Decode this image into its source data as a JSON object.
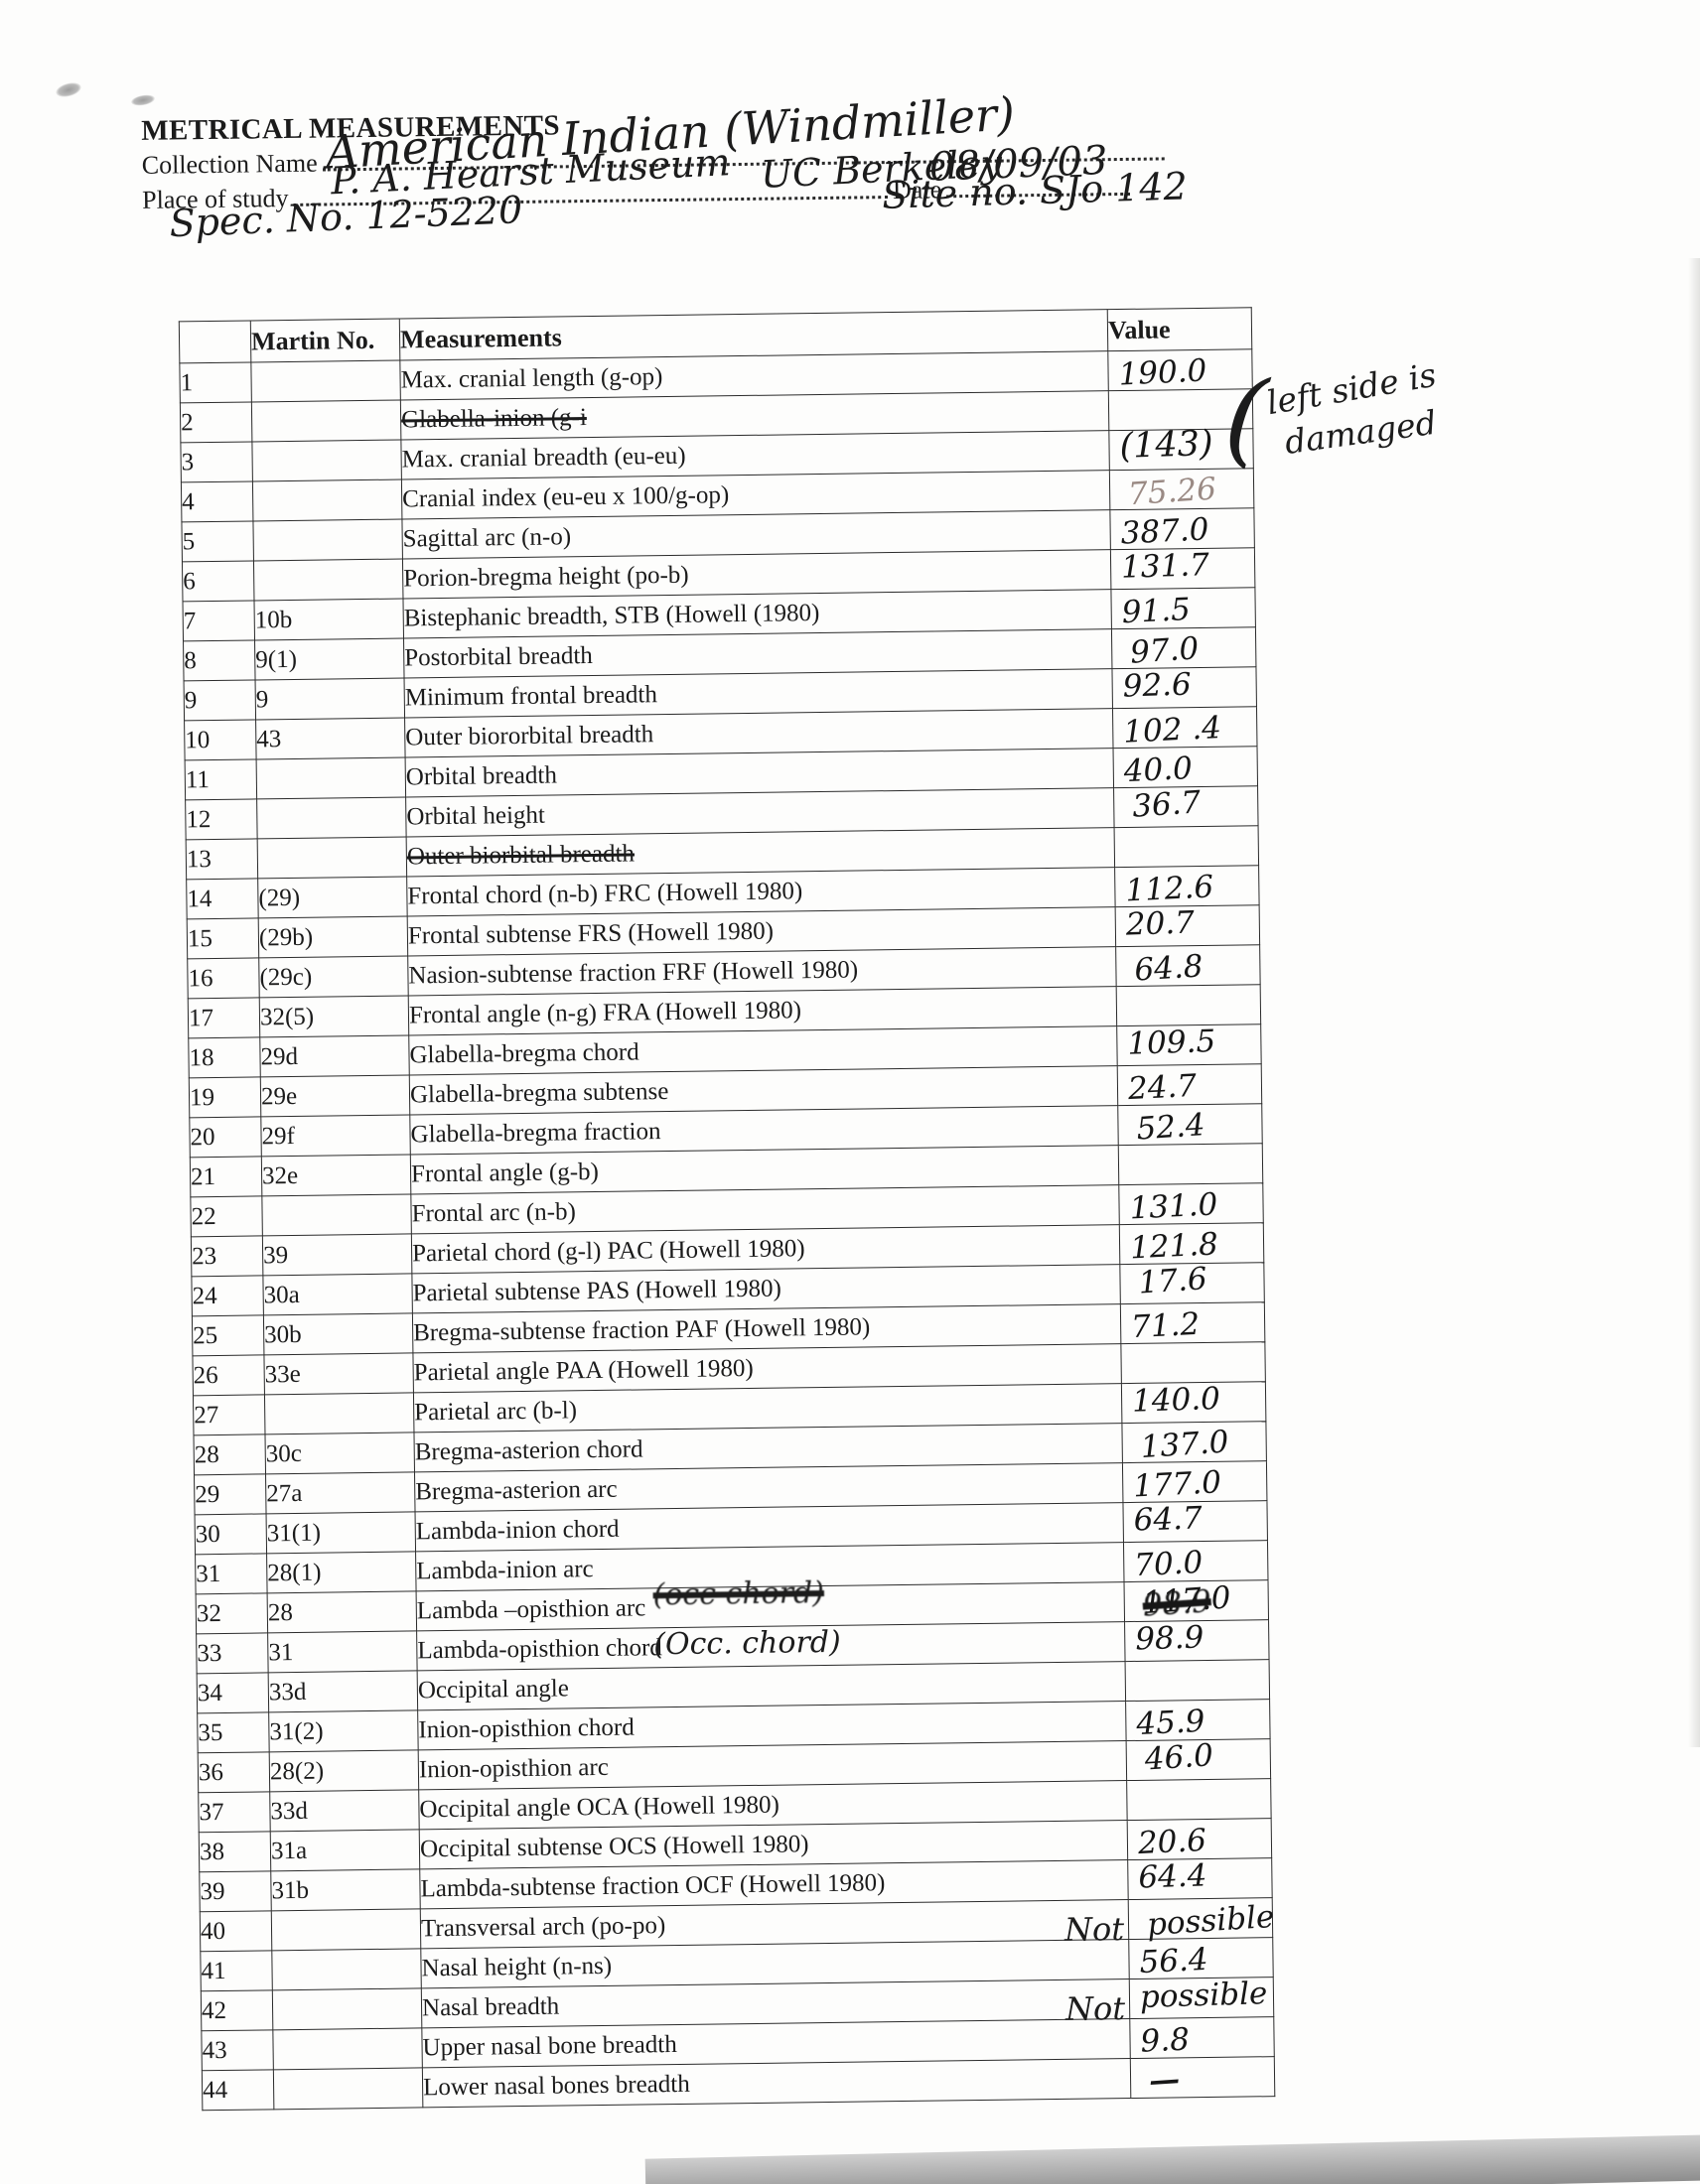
{
  "page": {
    "title": "METRICAL MEASUREMENTS",
    "fields": {
      "collection_label": "Collection  Name",
      "collection_value": "American Indian (Windmiller)",
      "place_label": "Place of study",
      "place_value1": "P. A. Hearst Museum",
      "place_value2": "UC Berkeley",
      "date_label": "Date",
      "date_value": "08/09/03",
      "spec_no": "Spec. No. 12-5220",
      "site_no": "Site no. SJo 142"
    }
  },
  "annotations": {
    "brace": "(",
    "damage_note_line1": "left side is",
    "damage_note_line2": "damaged",
    "not_label": "Not"
  },
  "table": {
    "headers": {
      "num": "",
      "martin": "Martin No.",
      "measurement": "Measurements",
      "value": "Value"
    },
    "rows": [
      {
        "n": "1",
        "m": "",
        "t": "Max. cranial length (g-op)",
        "v": "190.0"
      },
      {
        "n": "2",
        "m": "",
        "t": "Glabella-inion (g-i",
        "s": true,
        "v": ""
      },
      {
        "n": "3",
        "m": "",
        "t": "Max. cranial breadth (eu-eu)",
        "v": "(143)",
        "big": true
      },
      {
        "n": "4",
        "m": "",
        "t": "Cranial index (eu-eu x 100/g-op)",
        "v": "75.26",
        "p": true
      },
      {
        "n": "5",
        "m": "",
        "t": "Sagittal arc (n-o)",
        "v": "387.0"
      },
      {
        "n": "6",
        "m": "",
        "t": "Porion-bregma height  (po-b)",
        "v": "131.7"
      },
      {
        "n": "7",
        "m": "10b",
        "t": "Bistephanic breadth, STB (Howell (1980)",
        "v": "91.5"
      },
      {
        "n": "8",
        "m": "9(1)",
        "t": "Postorbital breadth",
        "v": "97.0"
      },
      {
        "n": "9",
        "m": "9",
        "t": "Minimum frontal breadth",
        "v": "92.6"
      },
      {
        "n": "10",
        "m": "43",
        "t": "Outer biororbital breadth",
        "v": "102 .4"
      },
      {
        "n": "11",
        "m": "",
        "t": "Orbital breadth",
        "v": "40.0"
      },
      {
        "n": "12",
        "m": "",
        "t": "Orbital height",
        "v": "36.7"
      },
      {
        "n": "13",
        "m": "",
        "t": "Outer biorbital breadth",
        "s": true,
        "v": ""
      },
      {
        "n": "14",
        "m": "(29)",
        "t": "Frontal chord (n-b) FRC (Howell 1980)",
        "v": "112.6"
      },
      {
        "n": "15",
        "m": "(29b)",
        "t": "Frontal  subtense FRS (Howell 1980)",
        "v": "20.7"
      },
      {
        "n": "16",
        "m": "(29c)",
        "t": "Nasion-subtense fraction FRF (Howell 1980)",
        "v": "64.8"
      },
      {
        "n": "17",
        "m": "32(5)",
        "t": "Frontal angle (n-g) FRA (Howell 1980)",
        "v": ""
      },
      {
        "n": "18",
        "m": "29d",
        "t": "Glabella-bregma chord",
        "v": "109.5"
      },
      {
        "n": "19",
        "m": "29e",
        "t": "Glabella-bregma subtense",
        "v": "24.7"
      },
      {
        "n": "20",
        "m": "29f",
        "t": "Glabella-bregma fraction",
        "v": "52.4"
      },
      {
        "n": "21",
        "m": "32e",
        "t": "Frontal angle (g-b)",
        "v": ""
      },
      {
        "n": "22",
        "m": "",
        "t": "Frontal arc (n-b)",
        "v": "131.0"
      },
      {
        "n": "23",
        "m": "39",
        "t": "Parietal chord (g-l) PAC (Howell 1980)",
        "v": "121.8"
      },
      {
        "n": "24",
        "m": "30a",
        "t": "Parietal subtense PAS (Howell 1980)",
        "v": "17.6"
      },
      {
        "n": "25",
        "m": "30b",
        "t": "Bregma-subtense fraction  PAF (Howell 1980)",
        "v": "71.2"
      },
      {
        "n": "26",
        "m": "33e",
        "t": "Parietal angle PAA (Howell 1980)",
        "v": ""
      },
      {
        "n": "27",
        "m": "",
        "t": "Parietal arc (b-l)",
        "v": "140.0"
      },
      {
        "n": "28",
        "m": "30c",
        "t": "Bregma-asterion  chord",
        "v": "137.0"
      },
      {
        "n": "29",
        "m": "27a",
        "t": "Bregma-asterion   arc",
        "v": "177.0"
      },
      {
        "n": "30",
        "m": "31(1)",
        "t": "Lambda-inion chord",
        "v": "64.7"
      },
      {
        "n": "31",
        "m": "28(1)",
        "t": "Lambda-inion arc",
        "v": "70.0"
      },
      {
        "n": "32",
        "m": "28",
        "t": "Lambda –opisthion arc",
        "note": "(occ chord)",
        "noteStruck": true,
        "scribble": "98.9",
        "corr": "117.0"
      },
      {
        "n": "33",
        "m": "31",
        "t": "Lambda-opisthion chord",
        "note": "(Occ. chord)",
        "v": "98.9"
      },
      {
        "n": "34",
        "m": "33d",
        "t": "Occipital angle",
        "v": ""
      },
      {
        "n": "35",
        "m": "31(2)",
        "t": "Inion-opisthion  chord",
        "v": "45.9"
      },
      {
        "n": "36",
        "m": "28(2)",
        "t": "Inion-opisthion arc",
        "v": "46.0"
      },
      {
        "n": "37",
        "m": "33d",
        "t": "Occipital angle OCA (Howell 1980)",
        "v": ""
      },
      {
        "n": "38",
        "m": "31a",
        "t": "Occipital  subtense OCS (Howell 1980)",
        "v": "20.6"
      },
      {
        "n": "39",
        "m": "31b",
        "t": "Lambda-subtense fraction OCF (Howell 1980)",
        "v": "64.4"
      },
      {
        "n": "40",
        "m": "",
        "t": "Transversal arch (po-po)",
        "not": true,
        "v": "possible"
      },
      {
        "n": "41",
        "m": "",
        "t": "Nasal height (n-ns)",
        "v": "56.4"
      },
      {
        "n": "42",
        "m": "",
        "t": "Nasal breadth",
        "not": true,
        "v": "possible"
      },
      {
        "n": "43",
        "m": "",
        "t": "Upper  nasal bone breadth",
        "v": "9.8"
      },
      {
        "n": "44",
        "m": "",
        "t": "Lower nasal bones breadth",
        "v": "—",
        "dash": true
      }
    ]
  }
}
